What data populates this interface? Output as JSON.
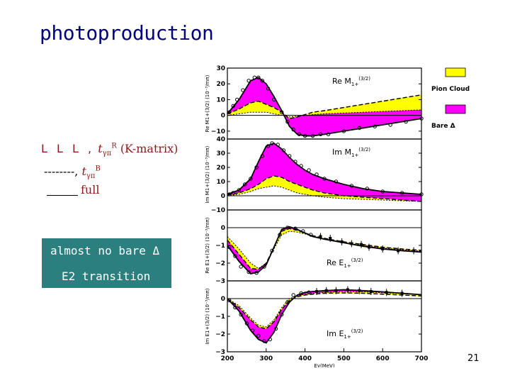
{
  "title": "photoproduction",
  "legend_text": {
    "line1_letters": "L L L ,",
    "line1_t": "t",
    "line1_sub": "γπ",
    "line1_sup": "R",
    "line1_kmatrix": "(K-matrix)",
    "line2_dashes": "--------,",
    "line2_t": "t",
    "line2_sub": "γπ",
    "line2_sup": "B",
    "line3_full": "full"
  },
  "note_box": {
    "line1": "almost no bare Δ",
    "line2": "E2 transition",
    "color": "#2b7f7f"
  },
  "page_number": "21",
  "colors": {
    "pion_cloud": "#ffff00",
    "bare_delta": "#ff00ff",
    "axis": "#000000"
  },
  "chart_data": {
    "type": "line",
    "title": "",
    "xlabel": "Eγ(MeV)",
    "x_ticks": [
      "200",
      "300",
      "400",
      "500",
      "600",
      "700"
    ],
    "xlim": [
      200,
      700
    ],
    "legend": [
      "Pion Cloud",
      "Bare Δ"
    ],
    "panels": [
      {
        "name": "Re M1+ (3/2)",
        "label_prefix": "Re M",
        "label_sub": "1+",
        "label_sup": "(3/2)",
        "ylabel": "Re M1+(3/2) (10⁻³/mπ)",
        "ylim": [
          -15,
          30
        ],
        "y_ticks": [
          "30",
          "20",
          "10",
          "0",
          "−10"
        ],
        "x": [
          200,
          230,
          260,
          280,
          300,
          320,
          340,
          360,
          380,
          400,
          420,
          450,
          500,
          550,
          600,
          650,
          700
        ],
        "full": [
          1,
          10,
          22,
          24,
          20,
          12,
          3,
          -7,
          -12,
          -13,
          -13,
          -12,
          -10,
          -8,
          -6,
          -4,
          -2
        ],
        "pion_cloud_band": [
          1,
          4,
          8,
          9,
          7,
          5,
          2,
          -2,
          -1,
          0.5,
          2,
          3,
          5,
          7,
          9,
          11,
          13
        ],
        "nonresonant": [
          0,
          1,
          2,
          2,
          2,
          1,
          0,
          -1,
          -0.5,
          0,
          0.5,
          1,
          1.5,
          2,
          2.5,
          3,
          3.5
        ],
        "data": [
          [
            205,
            2
          ],
          [
            215,
            6
          ],
          [
            225,
            10
          ],
          [
            240,
            16
          ],
          [
            255,
            22
          ],
          [
            270,
            24
          ],
          [
            280,
            24
          ],
          [
            290,
            22
          ],
          [
            305,
            17
          ],
          [
            320,
            10
          ],
          [
            340,
            2
          ],
          [
            355,
            -4
          ],
          [
            370,
            -9
          ],
          [
            385,
            -12
          ],
          [
            400,
            -13
          ],
          [
            420,
            -13
          ],
          [
            440,
            -12
          ],
          [
            460,
            -12
          ],
          [
            500,
            -10
          ],
          [
            540,
            -8
          ],
          [
            580,
            -7
          ],
          [
            620,
            -6
          ],
          [
            660,
            -4
          ],
          [
            700,
            -2
          ]
        ]
      },
      {
        "name": "Im M1+ (3/2)",
        "label_prefix": "Im M",
        "label_sub": "1+",
        "label_sup": "(3/2)",
        "ylabel": "Im M1+(3/2) (10⁻³/mπ)",
        "ylim": [
          -10,
          40
        ],
        "y_ticks": [
          "40",
          "30",
          "20",
          "10",
          "0",
          "−10"
        ],
        "x": [
          200,
          230,
          260,
          280,
          300,
          320,
          340,
          360,
          380,
          400,
          420,
          450,
          500,
          550,
          600,
          650,
          700
        ],
        "full": [
          1,
          4,
          12,
          24,
          35,
          37,
          33,
          27,
          22,
          18,
          15,
          12,
          8,
          5,
          3,
          2,
          1
        ],
        "pion_cloud_band": [
          0.5,
          2,
          5,
          8,
          12,
          14,
          13,
          10,
          8,
          6,
          4,
          2,
          0,
          -1,
          -2,
          -3,
          -4
        ],
        "nonresonant": [
          0,
          1,
          3,
          5,
          6,
          7,
          6,
          4,
          2,
          1,
          0,
          -1,
          -2,
          -2.5,
          -3,
          -3.5,
          -4
        ],
        "data": [
          [
            205,
            1
          ],
          [
            215,
            2
          ],
          [
            230,
            4
          ],
          [
            245,
            8
          ],
          [
            260,
            12
          ],
          [
            275,
            20
          ],
          [
            290,
            28
          ],
          [
            305,
            35
          ],
          [
            315,
            37
          ],
          [
            330,
            36
          ],
          [
            345,
            32
          ],
          [
            360,
            28
          ],
          [
            375,
            24
          ],
          [
            390,
            21
          ],
          [
            410,
            18
          ],
          [
            430,
            15
          ],
          [
            450,
            12
          ],
          [
            480,
            10
          ],
          [
            520,
            7
          ],
          [
            560,
            5
          ],
          [
            600,
            3
          ],
          [
            650,
            2
          ],
          [
            700,
            1
          ]
        ]
      },
      {
        "name": "Re E1+ (3/2)",
        "label_prefix": "Re E",
        "label_sub": "1+",
        "label_sup": "(3/2)",
        "ylabel": "Re E1+(3/2) (10⁻³/mπ)",
        "ylim": [
          -3,
          1
        ],
        "y_ticks": [
          "0",
          "−1",
          "−2",
          "−3"
        ],
        "x": [
          200,
          230,
          260,
          280,
          300,
          320,
          340,
          360,
          380,
          400,
          420,
          450,
          500,
          550,
          600,
          650,
          700
        ],
        "full": [
          -1,
          -1.9,
          -2.6,
          -2.5,
          -2.1,
          -1.1,
          -0.1,
          0.05,
          -0.1,
          -0.3,
          -0.5,
          -0.65,
          -0.85,
          -1.05,
          -1.2,
          -1.3,
          -1.38
        ],
        "pion_cloud_band": [
          -0.7,
          -1.5,
          -2.3,
          -2.35,
          -2.0,
          -1.1,
          -0.2,
          -0.05,
          -0.15,
          -0.3,
          -0.45,
          -0.6,
          -0.8,
          -0.95,
          -1.1,
          -1.2,
          -1.28
        ],
        "nonresonant": [
          -0.5,
          -1.2,
          -2.0,
          -2.3,
          -2.0,
          -1.2,
          -0.4,
          -0.2,
          -0.25,
          -0.35,
          -0.5,
          -0.65,
          -0.85,
          -1.0,
          -1.15,
          -1.25,
          -1.33
        ],
        "data": [
          [
            205,
            -1.1
          ],
          [
            220,
            -1.6
          ],
          [
            235,
            -2.2
          ],
          [
            255,
            -2.5
          ],
          [
            275,
            -2.55
          ],
          [
            295,
            -2.2
          ],
          [
            315,
            -1.3
          ],
          [
            335,
            -0.4
          ],
          [
            355,
            0
          ],
          [
            375,
            -0.05
          ],
          [
            395,
            -0.2
          ],
          [
            415,
            -0.4
          ],
          [
            440,
            -0.5
          ],
          [
            465,
            -0.6
          ],
          [
            495,
            -0.8
          ],
          [
            520,
            -0.9
          ],
          [
            545,
            -0.95
          ],
          [
            565,
            -1.1
          ],
          [
            600,
            -1.2
          ],
          [
            640,
            -1.3
          ],
          [
            680,
            -1.3
          ]
        ]
      },
      {
        "name": "Im E1+ (3/2)",
        "label_prefix": "Im E",
        "label_sub": "1+",
        "label_sup": "(3/2)",
        "ylabel": "Im E1+(3/2) (10⁻³/mπ)",
        "ylim": [
          -3,
          1
        ],
        "y_ticks": [
          "0",
          "−1",
          "−2",
          "−3"
        ],
        "x": [
          200,
          230,
          260,
          280,
          300,
          320,
          340,
          360,
          380,
          400,
          420,
          450,
          500,
          550,
          600,
          650,
          700
        ],
        "full": [
          0,
          -0.7,
          -1.8,
          -2.3,
          -2.5,
          -1.9,
          -0.9,
          -0.2,
          0.2,
          0.35,
          0.4,
          0.45,
          0.5,
          0.45,
          0.38,
          0.3,
          0.22
        ],
        "pion_cloud_band": [
          0,
          -0.5,
          -1.2,
          -1.6,
          -1.7,
          -1.3,
          -0.6,
          -0.1,
          0.1,
          0.2,
          0.25,
          0.3,
          0.32,
          0.3,
          0.25,
          0.2,
          0.15
        ],
        "nonresonant": [
          0,
          -0.4,
          -1.1,
          -1.5,
          -1.6,
          -1.2,
          -0.5,
          0,
          0.15,
          0.25,
          0.3,
          0.35,
          0.4,
          0.38,
          0.33,
          0.28,
          0.22
        ],
        "data": [
          [
            205,
            -0.1
          ],
          [
            220,
            -0.5
          ],
          [
            235,
            -0.9
          ],
          [
            250,
            -1.4
          ],
          [
            265,
            -1.8
          ],
          [
            280,
            -2.1
          ],
          [
            295,
            -2.4
          ],
          [
            310,
            -2.3
          ],
          [
            325,
            -1.7
          ],
          [
            340,
            -0.9
          ],
          [
            355,
            -0.2
          ],
          [
            370,
            0.2
          ],
          [
            390,
            0.3
          ],
          [
            410,
            0.35
          ],
          [
            430,
            0.4
          ],
          [
            455,
            0.45
          ],
          [
            480,
            0.45
          ],
          [
            510,
            0.5
          ],
          [
            540,
            0.45
          ],
          [
            570,
            0.4
          ],
          [
            610,
            0.35
          ],
          [
            650,
            0.3
          ]
        ]
      }
    ]
  }
}
